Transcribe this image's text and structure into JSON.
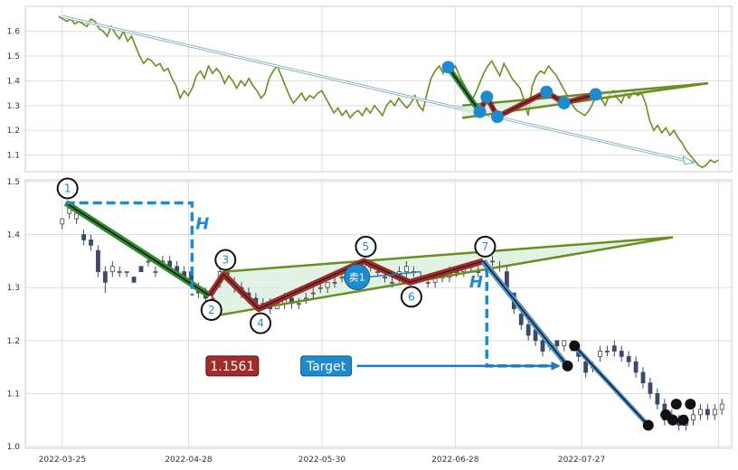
{
  "chart_data": {
    "type": "candlestick",
    "title": "",
    "x_ticks": [
      "2022-03-25",
      "2022-04-28",
      "2022-05-30",
      "2022-06-28",
      "2022-07-27"
    ],
    "grid": true,
    "colors": {
      "line": "#6b8e23",
      "up_candle": "#ffffff",
      "down_candle": "#3b4a6b",
      "pattern_fill": "#d8efdc",
      "green_leg": "#2e8b2e",
      "red_leg": "#a52a2a",
      "blue_marker": "#1e8bd1",
      "dash": "#1e8bd1"
    },
    "top_panel": {
      "y_ticks": [
        "1.6",
        "1.5",
        "1.4",
        "1.3",
        "1.2",
        "1.1"
      ],
      "ylim": [
        1.04,
        1.69
      ],
      "series": [
        1.66,
        1.65,
        1.64,
        1.65,
        1.63,
        1.64,
        1.63,
        1.62,
        1.65,
        1.64,
        1.61,
        1.6,
        1.58,
        1.62,
        1.59,
        1.57,
        1.6,
        1.56,
        1.58,
        1.54,
        1.5,
        1.47,
        1.49,
        1.48,
        1.46,
        1.47,
        1.44,
        1.45,
        1.41,
        1.38,
        1.33,
        1.36,
        1.34,
        1.37,
        1.42,
        1.44,
        1.41,
        1.46,
        1.43,
        1.45,
        1.43,
        1.39,
        1.42,
        1.4,
        1.37,
        1.4,
        1.38,
        1.41,
        1.38,
        1.36,
        1.33,
        1.35,
        1.41,
        1.44,
        1.46,
        1.42,
        1.38,
        1.34,
        1.31,
        1.33,
        1.35,
        1.32,
        1.34,
        1.33,
        1.35,
        1.36,
        1.33,
        1.3,
        1.27,
        1.29,
        1.26,
        1.28,
        1.25,
        1.27,
        1.28,
        1.26,
        1.29,
        1.27,
        1.3,
        1.28,
        1.26,
        1.3,
        1.32,
        1.3,
        1.33,
        1.31,
        1.29,
        1.31,
        1.34,
        1.3,
        1.28,
        1.35,
        1.41,
        1.44,
        1.46,
        1.43,
        1.47,
        1.44,
        1.46,
        1.42,
        1.39,
        1.36,
        1.32,
        1.35,
        1.39,
        1.43,
        1.46,
        1.48,
        1.45,
        1.42,
        1.47,
        1.44,
        1.41,
        1.39,
        1.37,
        1.32,
        1.26,
        1.38,
        1.42,
        1.44,
        1.43,
        1.46,
        1.44,
        1.42,
        1.39,
        1.36,
        1.33,
        1.3,
        1.28,
        1.27,
        1.26,
        1.28,
        1.31,
        1.35,
        1.33,
        1.3,
        1.34,
        1.36,
        1.33,
        1.31,
        1.35,
        1.33,
        1.36,
        1.34,
        1.35,
        1.31,
        1.24,
        1.2,
        1.22,
        1.19,
        1.21,
        1.18,
        1.2,
        1.17,
        1.15,
        1.12,
        1.1,
        1.08,
        1.06,
        1.05,
        1.06,
        1.08,
        1.07,
        1.08
      ],
      "channel_upper": [
        [
          0.62,
          1.3
        ],
        [
          0.97,
          1.39
        ]
      ],
      "channel_lower": [
        [
          0.62,
          1.25
        ],
        [
          0.97,
          1.39
        ]
      ],
      "trend_arrow": [
        [
          0.05,
          1.66
        ],
        [
          0.95,
          1.07
        ]
      ],
      "markers": [
        {
          "x": 0.6,
          "y": 1.455
        },
        {
          "x": 0.645,
          "y": 1.275
        },
        {
          "x": 0.655,
          "y": 1.335
        },
        {
          "x": 0.67,
          "y": 1.255
        },
        {
          "x": 0.74,
          "y": 1.355
        },
        {
          "x": 0.765,
          "y": 1.31
        },
        {
          "x": 0.81,
          "y": 1.345
        }
      ]
    },
    "bottom_panel": {
      "y_ticks": [
        "1.5",
        "1.4",
        "1.3",
        "1.2",
        "1.1",
        "1.0"
      ],
      "ylim": [
        1.0,
        1.5
      ],
      "candles": [
        [
          1.42,
          1.43,
          1.41,
          1.43
        ],
        [
          1.44,
          1.46,
          1.43,
          1.45
        ],
        [
          1.43,
          1.45,
          1.42,
          1.44
        ],
        [
          1.4,
          1.41,
          1.38,
          1.39
        ],
        [
          1.39,
          1.4,
          1.37,
          1.38
        ],
        [
          1.37,
          1.38,
          1.32,
          1.33
        ],
        [
          1.33,
          1.34,
          1.29,
          1.31
        ],
        [
          1.33,
          1.35,
          1.32,
          1.34
        ],
        [
          1.33,
          1.34,
          1.32,
          1.33
        ],
        [
          1.33,
          1.33,
          1.32,
          1.33
        ],
        [
          1.32,
          1.32,
          1.31,
          1.31
        ],
        [
          1.34,
          1.34,
          1.33,
          1.33
        ],
        [
          1.35,
          1.36,
          1.34,
          1.35
        ],
        [
          1.33,
          1.34,
          1.32,
          1.33
        ],
        [
          1.35,
          1.36,
          1.34,
          1.35
        ],
        [
          1.35,
          1.36,
          1.33,
          1.34
        ],
        [
          1.34,
          1.35,
          1.32,
          1.33
        ],
        [
          1.33,
          1.34,
          1.31,
          1.32
        ],
        [
          1.33,
          1.33,
          1.3,
          1.31
        ],
        [
          1.3,
          1.31,
          1.28,
          1.29
        ],
        [
          1.29,
          1.3,
          1.27,
          1.28
        ],
        [
          1.28,
          1.29,
          1.27,
          1.28
        ],
        [
          1.32,
          1.34,
          1.3,
          1.33
        ],
        [
          1.33,
          1.34,
          1.31,
          1.32
        ],
        [
          1.31,
          1.32,
          1.29,
          1.3
        ],
        [
          1.3,
          1.31,
          1.28,
          1.29
        ],
        [
          1.29,
          1.3,
          1.27,
          1.28
        ],
        [
          1.28,
          1.29,
          1.26,
          1.27
        ],
        [
          1.27,
          1.28,
          1.26,
          1.27
        ],
        [
          1.27,
          1.28,
          1.25,
          1.26
        ],
        [
          1.26,
          1.28,
          1.26,
          1.27
        ],
        [
          1.27,
          1.29,
          1.26,
          1.28
        ],
        [
          1.28,
          1.29,
          1.26,
          1.27
        ],
        [
          1.27,
          1.28,
          1.26,
          1.27
        ],
        [
          1.28,
          1.29,
          1.27,
          1.28
        ],
        [
          1.29,
          1.3,
          1.28,
          1.29
        ],
        [
          1.3,
          1.31,
          1.29,
          1.3
        ],
        [
          1.3,
          1.31,
          1.29,
          1.31
        ],
        [
          1.31,
          1.32,
          1.3,
          1.31
        ],
        [
          1.32,
          1.33,
          1.31,
          1.32
        ],
        [
          1.32,
          1.34,
          1.31,
          1.33
        ],
        [
          1.33,
          1.34,
          1.32,
          1.34
        ],
        [
          1.34,
          1.35,
          1.33,
          1.35
        ],
        [
          1.34,
          1.35,
          1.33,
          1.34
        ],
        [
          1.33,
          1.34,
          1.32,
          1.33
        ],
        [
          1.32,
          1.33,
          1.31,
          1.32
        ],
        [
          1.31,
          1.32,
          1.3,
          1.31
        ],
        [
          1.32,
          1.34,
          1.31,
          1.33
        ],
        [
          1.33,
          1.35,
          1.32,
          1.34
        ],
        [
          1.33,
          1.34,
          1.32,
          1.33
        ],
        [
          1.32,
          1.33,
          1.31,
          1.32
        ],
        [
          1.31,
          1.32,
          1.3,
          1.31
        ],
        [
          1.31,
          1.33,
          1.3,
          1.32
        ],
        [
          1.32,
          1.33,
          1.31,
          1.32
        ],
        [
          1.32,
          1.34,
          1.31,
          1.33
        ],
        [
          1.33,
          1.34,
          1.32,
          1.33
        ],
        [
          1.33,
          1.34,
          1.32,
          1.34
        ],
        [
          1.34,
          1.35,
          1.33,
          1.34
        ],
        [
          1.33,
          1.34,
          1.32,
          1.33
        ],
        [
          1.34,
          1.35,
          1.33,
          1.35
        ],
        [
          1.35,
          1.36,
          1.34,
          1.35
        ],
        [
          1.34,
          1.35,
          1.33,
          1.34
        ],
        [
          1.33,
          1.34,
          1.3,
          1.3
        ],
        [
          1.29,
          1.29,
          1.25,
          1.26
        ],
        [
          1.25,
          1.26,
          1.22,
          1.23
        ],
        [
          1.23,
          1.24,
          1.2,
          1.21
        ],
        [
          1.22,
          1.23,
          1.19,
          1.2
        ],
        [
          1.2,
          1.21,
          1.17,
          1.18
        ],
        [
          1.19,
          1.2,
          1.18,
          1.19
        ],
        [
          1.2,
          1.2,
          1.18,
          1.19
        ],
        [
          1.19,
          1.2,
          1.18,
          1.2
        ],
        [
          1.19,
          1.2,
          1.18,
          1.19
        ],
        [
          1.18,
          1.19,
          1.16,
          1.17
        ],
        [
          1.16,
          1.17,
          1.13,
          1.14
        ],
        [
          1.15,
          1.16,
          1.14,
          1.15
        ],
        [
          1.17,
          1.19,
          1.16,
          1.18
        ],
        [
          1.18,
          1.19,
          1.17,
          1.18
        ],
        [
          1.19,
          1.2,
          1.17,
          1.18
        ],
        [
          1.18,
          1.19,
          1.16,
          1.17
        ],
        [
          1.17,
          1.18,
          1.15,
          1.16
        ],
        [
          1.16,
          1.17,
          1.13,
          1.14
        ],
        [
          1.14,
          1.15,
          1.11,
          1.12
        ],
        [
          1.12,
          1.13,
          1.09,
          1.1
        ],
        [
          1.1,
          1.11,
          1.07,
          1.08
        ],
        [
          1.08,
          1.09,
          1.04,
          1.05
        ],
        [
          1.06,
          1.07,
          1.04,
          1.05
        ],
        [
          1.05,
          1.06,
          1.03,
          1.04
        ],
        [
          1.04,
          1.06,
          1.03,
          1.05
        ],
        [
          1.05,
          1.07,
          1.04,
          1.06
        ],
        [
          1.06,
          1.08,
          1.05,
          1.07
        ],
        [
          1.07,
          1.08,
          1.05,
          1.06
        ],
        [
          1.06,
          1.08,
          1.05,
          1.07
        ],
        [
          1.07,
          1.09,
          1.06,
          1.08
        ]
      ],
      "pattern_points": [
        {
          "label": "1",
          "x": 0.055,
          "y": 1.46
        },
        {
          "label": "2",
          "x": 0.26,
          "y": 1.285
        },
        {
          "label": "3",
          "x": 0.28,
          "y": 1.325
        },
        {
          "label": "4",
          "x": 0.33,
          "y": 1.26
        },
        {
          "label": "5",
          "x": 0.48,
          "y": 1.35
        },
        {
          "label": "6",
          "x": 0.545,
          "y": 1.31
        },
        {
          "label": "7",
          "x": 0.65,
          "y": 1.35
        }
      ],
      "triangle_upper": [
        [
          0.28,
          1.33
        ],
        [
          0.92,
          1.395
        ]
      ],
      "triangle_lower": [
        [
          0.26,
          1.245
        ],
        [
          0.92,
          1.395
        ]
      ],
      "sell_signal": {
        "label": "卖1",
        "x": 0.47,
        "y": 1.32
      },
      "projection_end": {
        "x": 0.77,
        "y": 1.152
      },
      "tail_points": [
        [
          0.78,
          1.19
        ],
        [
          0.885,
          1.04
        ],
        [
          0.91,
          1.06
        ],
        [
          0.92,
          1.05
        ],
        [
          0.925,
          1.08
        ],
        [
          0.935,
          1.05
        ],
        [
          0.945,
          1.08
        ]
      ],
      "price_label": "1.1561",
      "target_label": "Target",
      "height_labels": [
        "H",
        "H"
      ]
    }
  }
}
